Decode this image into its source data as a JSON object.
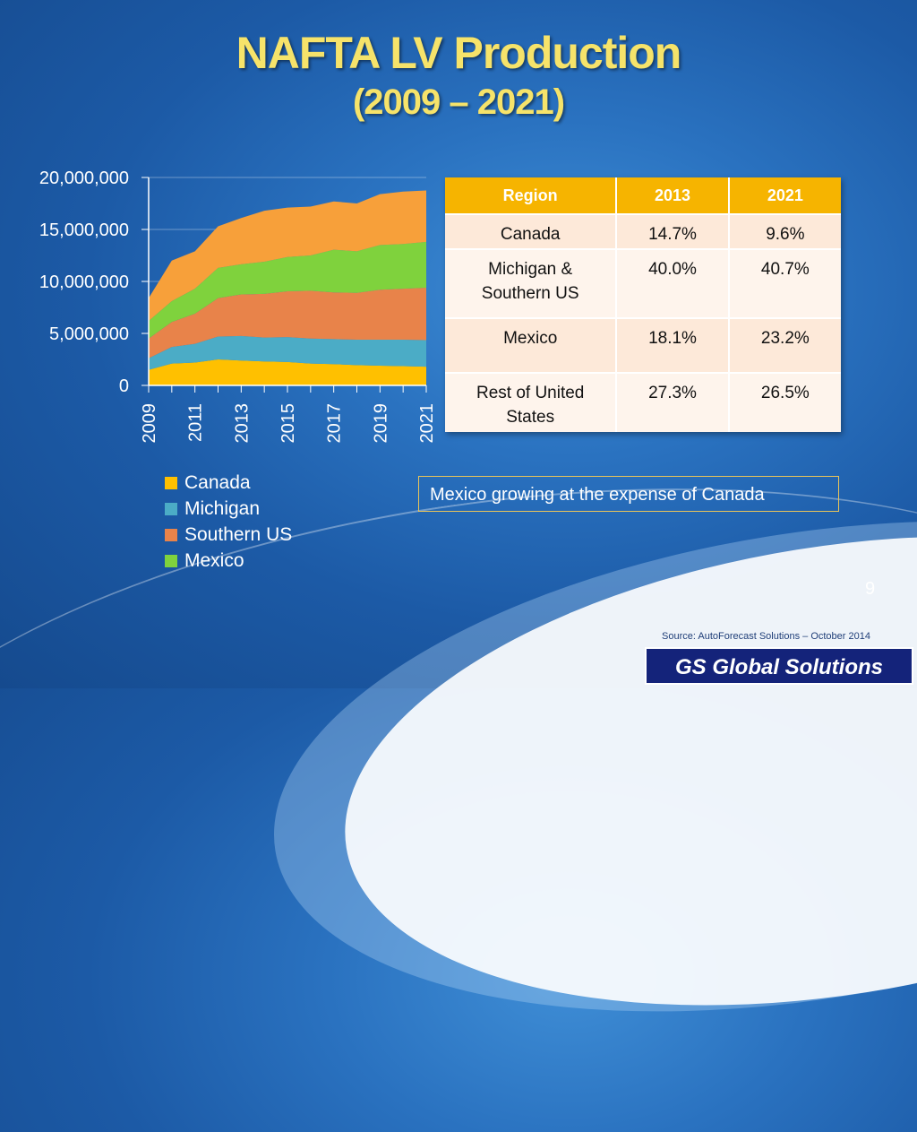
{
  "title": {
    "line1": "NAFTA LV Production",
    "line2": "(2009 – 2021)"
  },
  "chart_data": {
    "type": "area",
    "stacked": true,
    "x": [
      2009,
      2010,
      2011,
      2012,
      2013,
      2014,
      2015,
      2016,
      2017,
      2018,
      2019,
      2020,
      2021
    ],
    "x_tick_labels": [
      "2009",
      "2011",
      "2013",
      "2015",
      "2017",
      "2019",
      "2021"
    ],
    "y_tick_labels": [
      "20,000,000",
      "15,000,000",
      "10,000,000",
      "5,000,000",
      "0"
    ],
    "ylim": [
      0,
      20000000
    ],
    "series": [
      {
        "name": "Canada",
        "color": "#ffc000",
        "values": [
          1500000,
          2100000,
          2200000,
          2500000,
          2400000,
          2300000,
          2250000,
          2100000,
          2050000,
          1950000,
          1900000,
          1850000,
          1800000
        ]
      },
      {
        "name": "Michigan",
        "color": "#4bacc6",
        "values": [
          1100000,
          1600000,
          1800000,
          2200000,
          2350000,
          2300000,
          2400000,
          2400000,
          2400000,
          2450000,
          2500000,
          2550000,
          2550000
        ]
      },
      {
        "name": "Southern US",
        "color": "#e8834a",
        "values": [
          1900000,
          2400000,
          2900000,
          3700000,
          4000000,
          4200000,
          4400000,
          4600000,
          4500000,
          4500000,
          4800000,
          4900000,
          5050000
        ]
      },
      {
        "name": "Mexico",
        "color": "#7fd23d",
        "values": [
          1700000,
          2000000,
          2400000,
          2900000,
          2900000,
          3100000,
          3300000,
          3400000,
          4100000,
          4000000,
          4300000,
          4300000,
          4400000
        ]
      },
      {
        "name": "Rest of United States",
        "color": "#f7a03a",
        "values": [
          2200000,
          3900000,
          3600000,
          4000000,
          4450000,
          4900000,
          4750000,
          4700000,
          4650000,
          4600000,
          4900000,
          5050000,
          4950000
        ]
      }
    ],
    "legend": [
      "Canada",
      "Michigan",
      "Southern US",
      "Mexico"
    ],
    "legend_colors": [
      "#ffc000",
      "#4bacc6",
      "#e8834a",
      "#7fd23d"
    ],
    "grid": "horizontal"
  },
  "table": {
    "headers": [
      "Region",
      "2013",
      "2021"
    ],
    "rows": [
      [
        "Canada",
        "14.7%",
        "9.6%"
      ],
      [
        "Michigan & Southern US",
        "40.0%",
        "40.7%"
      ],
      [
        "Mexico",
        "18.1%",
        "23.2%"
      ],
      [
        "Rest of United States",
        "27.3%",
        "26.5%"
      ]
    ]
  },
  "note": "Mexico growing at the expense of Canada",
  "page_number": "9",
  "source": "Source: AutoForecast Solutions – October 2014",
  "brand": "GS Global Solutions"
}
